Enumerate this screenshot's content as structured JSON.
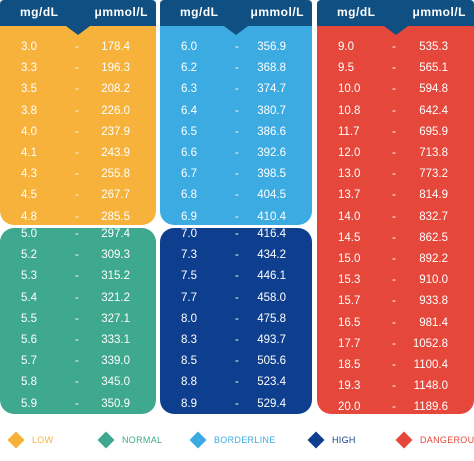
{
  "headers": {
    "mgdl": "mg/dL",
    "umol": "μmmol/L"
  },
  "legend": [
    {
      "label": "LOW",
      "color": "#f6b23a"
    },
    {
      "label": "NORMAL",
      "color": "#3ea98e"
    },
    {
      "label": "BORDERLINE",
      "color": "#3cabe2"
    },
    {
      "label": "HIGH",
      "color": "#0e3f8f"
    },
    {
      "label": "DANGEROUS",
      "color": "#e6473b"
    }
  ],
  "columns": [
    {
      "blocks": [
        {
          "category": "LOW",
          "color": "#f6b23a",
          "rows": [
            [
              "3.0",
              "178.4"
            ],
            [
              "3.3",
              "196.3"
            ],
            [
              "3.5",
              "208.2"
            ],
            [
              "3.8",
              "226.0"
            ],
            [
              "4.0",
              "237.9"
            ],
            [
              "4.1",
              "243.9"
            ],
            [
              "4.3",
              "255.8"
            ],
            [
              "4.5",
              "267.7"
            ],
            [
              "4.8",
              "285.5"
            ]
          ]
        },
        {
          "category": "NORMAL",
          "color": "#3ea98e",
          "rows": [
            [
              "5.0",
              "297.4"
            ],
            [
              "5.2",
              "309.3"
            ],
            [
              "5.3",
              "315.2"
            ],
            [
              "5.4",
              "321.2"
            ],
            [
              "5.5",
              "327.1"
            ],
            [
              "5.6",
              "333.1"
            ],
            [
              "5.7",
              "339.0"
            ],
            [
              "5.8",
              "345.0"
            ],
            [
              "5.9",
              "350.9"
            ]
          ]
        }
      ]
    },
    {
      "blocks": [
        {
          "category": "BORDERLINE",
          "color": "#3cabe2",
          "rows": [
            [
              "6.0",
              "356.9"
            ],
            [
              "6.2",
              "368.8"
            ],
            [
              "6.3",
              "374.7"
            ],
            [
              "6.4",
              "380.7"
            ],
            [
              "6.5",
              "386.6"
            ],
            [
              "6.6",
              "392.6"
            ],
            [
              "6.7",
              "398.5"
            ],
            [
              "6.8",
              "404.5"
            ],
            [
              "6.9",
              "410.4"
            ]
          ]
        },
        {
          "category": "HIGH",
          "color": "#0e3f8f",
          "rows": [
            [
              "7.0",
              "416.4"
            ],
            [
              "7.3",
              "434.2"
            ],
            [
              "7.5",
              "446.1"
            ],
            [
              "7.7",
              "458.0"
            ],
            [
              "8.0",
              "475.8"
            ],
            [
              "8.3",
              "493.7"
            ],
            [
              "8.5",
              "505.6"
            ],
            [
              "8.8",
              "523.4"
            ],
            [
              "8.9",
              "529.4"
            ]
          ]
        }
      ]
    },
    {
      "blocks": [
        {
          "category": "DANGEROUS",
          "color": "#e6473b",
          "rows": [
            [
              "9.0",
              "535.3"
            ],
            [
              "9.5",
              "565.1"
            ],
            [
              "10.0",
              "594.8"
            ],
            [
              "10.8",
              "642.4"
            ],
            [
              "11.7",
              "695.9"
            ],
            [
              "12.0",
              "713.8"
            ],
            [
              "13.0",
              "773.2"
            ],
            [
              "13.7",
              "814.9"
            ],
            [
              "14.0",
              "832.7"
            ],
            [
              "14.5",
              "862.5"
            ],
            [
              "15.0",
              "892.2"
            ],
            [
              "15.3",
              "910.0"
            ],
            [
              "15.7",
              "933.8"
            ],
            [
              "16.5",
              "981.4"
            ],
            [
              "17.7",
              "1052.8"
            ],
            [
              "18.5",
              "1100.4"
            ],
            [
              "19.3",
              "1148.0"
            ],
            [
              "20.0",
              "1189.6"
            ]
          ]
        }
      ]
    }
  ]
}
